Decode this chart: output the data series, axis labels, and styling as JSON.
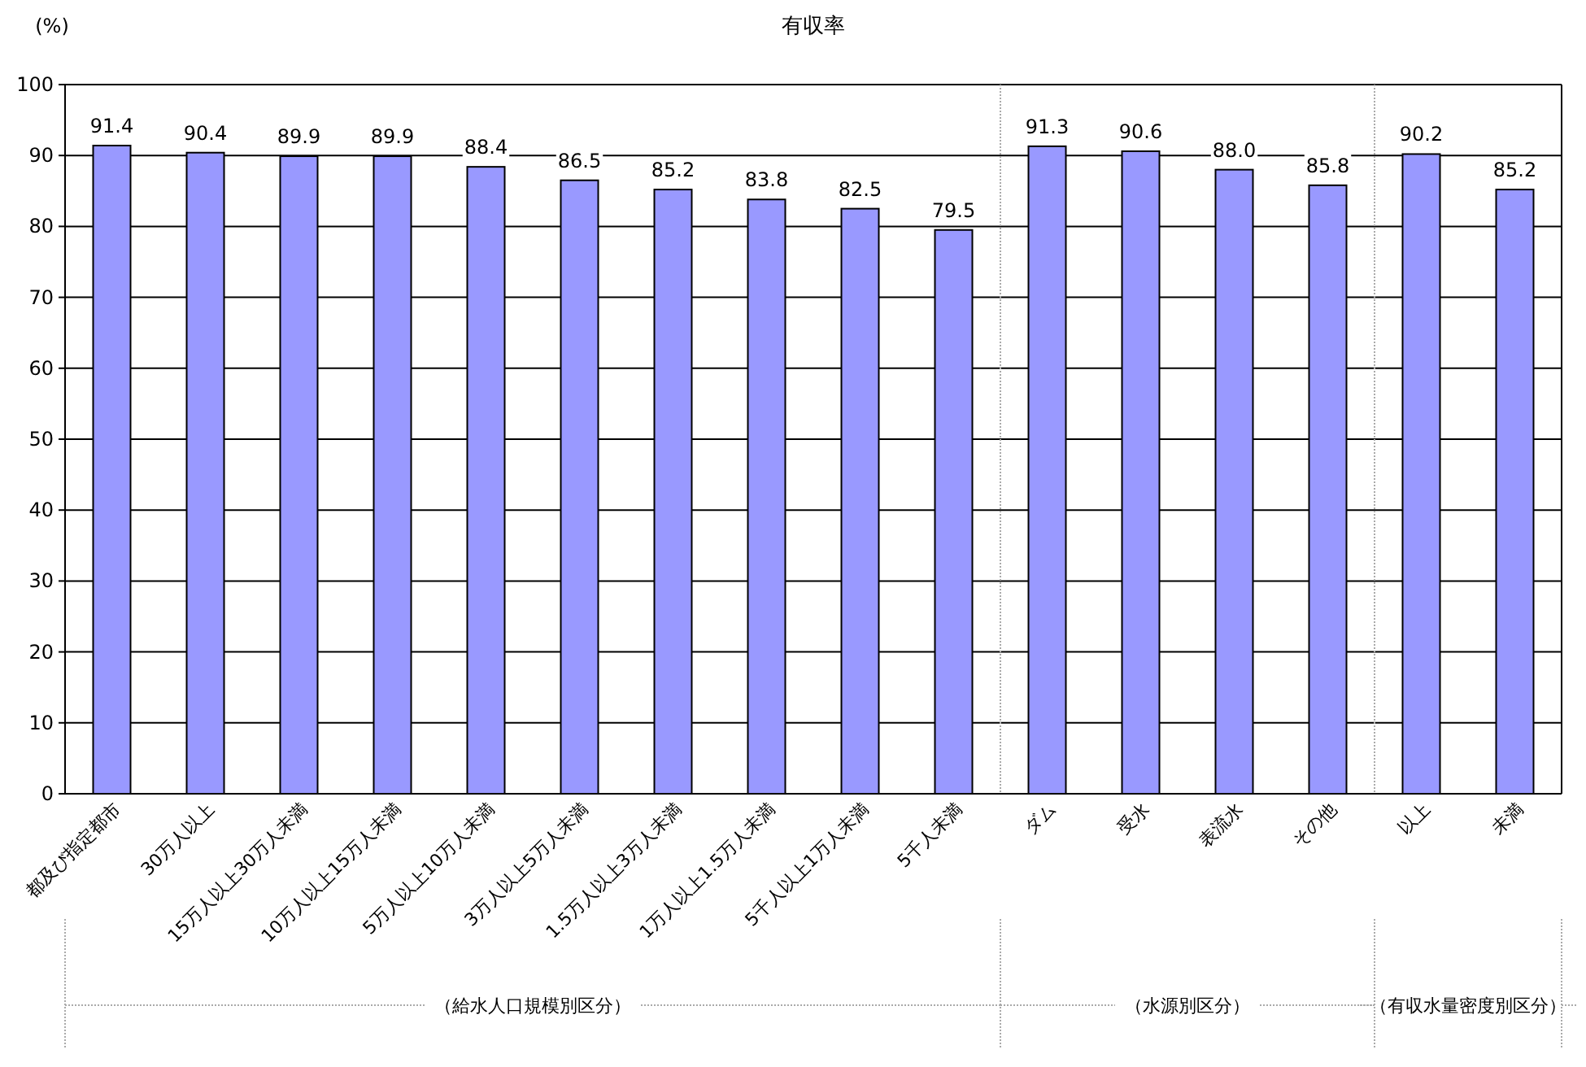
{
  "chart_data": {
    "type": "bar",
    "title": "有収率",
    "ylabel": "(%)",
    "categories": [
      "都及び指定都市",
      "30万人以上",
      "15万人以上30万人未満",
      "10万人以上15万人未満",
      "5万人以上10万人未満",
      "3万人以上5万人未満",
      "1.5万人以上3万人未満",
      "1万人以上1.5万人未満",
      "5千人以上1万人未満",
      "5千人未満",
      "ダム",
      "受水",
      "表流水",
      "その他",
      "以上",
      "未満"
    ],
    "values": [
      91.4,
      90.4,
      89.9,
      89.9,
      88.4,
      86.5,
      85.2,
      83.8,
      82.5,
      79.5,
      91.3,
      90.6,
      88.0,
      85.8,
      90.2,
      85.2
    ],
    "value_labels": [
      "91.4",
      "90.4",
      "89.9",
      "89.9",
      "88.4",
      "86.5",
      "85.2",
      "83.8",
      "82.5",
      "79.5",
      "91.3",
      "90.6",
      "88.0",
      "85.8",
      "90.2",
      "85.2"
    ],
    "color": "#9999ff",
    "ylim": [
      0,
      100
    ],
    "yticks": [
      0,
      10,
      20,
      30,
      40,
      50,
      60,
      70,
      80,
      90,
      100
    ],
    "grid": "y",
    "annotations": [
      "（給水人口規模別区分）",
      "（水源別区分）",
      "（有収水量密度別区分）"
    ]
  }
}
